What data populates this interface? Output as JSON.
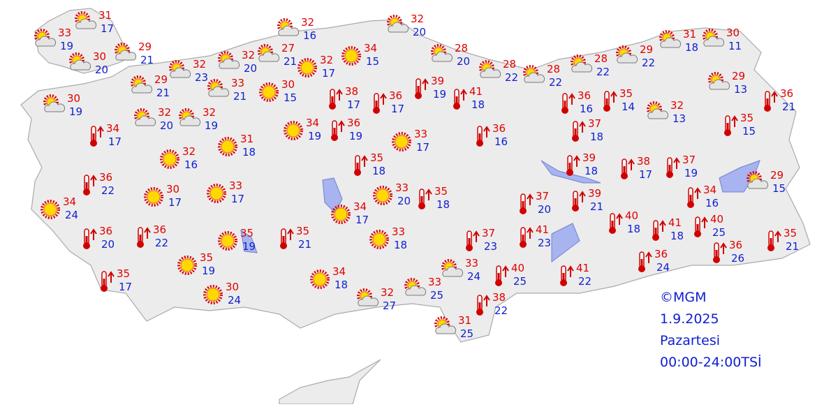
{
  "stations": [
    {
      "icon": "partly",
      "max": 33,
      "min": 19
    },
    {
      "icon": "partly",
      "max": 31,
      "min": 17
    },
    {
      "icon": "partly",
      "max": 30,
      "min": 20
    },
    {
      "icon": "partly",
      "max": 29,
      "min": 21
    },
    {
      "icon": "partly",
      "max": 32,
      "min": 23
    },
    {
      "icon": "partly",
      "max": 32,
      "min": 20
    },
    {
      "icon": "partly",
      "max": 27,
      "min": 21
    },
    {
      "icon": "sun",
      "max": 32,
      "min": 17
    },
    {
      "icon": "sun",
      "max": 34,
      "min": 15
    },
    {
      "icon": "partly",
      "max": 32,
      "min": 16
    },
    {
      "icon": "partly",
      "max": 32,
      "min": 20
    },
    {
      "icon": "partly",
      "max": 28,
      "min": 20
    },
    {
      "icon": "partly",
      "max": 28,
      "min": 22
    },
    {
      "icon": "partly",
      "max": 28,
      "min": 22
    },
    {
      "icon": "partly",
      "max": 28,
      "min": 22
    },
    {
      "icon": "partly",
      "max": 29,
      "min": 22
    },
    {
      "icon": "partly",
      "max": 31,
      "min": 18
    },
    {
      "icon": "partly",
      "max": 30,
      "min": 11
    },
    {
      "icon": "partly",
      "max": 29,
      "min": 13
    },
    {
      "icon": "hot",
      "max": 36,
      "min": 21
    },
    {
      "icon": "partly",
      "max": 29,
      "min": 21
    },
    {
      "icon": "partly",
      "max": 33,
      "min": 21
    },
    {
      "icon": "sun",
      "max": 30,
      "min": 15
    },
    {
      "icon": "hot",
      "max": 38,
      "min": 17
    },
    {
      "icon": "hot",
      "max": 36,
      "min": 17
    },
    {
      "icon": "hot",
      "max": 39,
      "min": 19
    },
    {
      "icon": "hot",
      "max": 41,
      "min": 18
    },
    {
      "icon": "hot",
      "max": 36,
      "min": 16
    },
    {
      "icon": "hot",
      "max": 35,
      "min": 14
    },
    {
      "icon": "partly",
      "max": 32,
      "min": 13
    },
    {
      "icon": "hot",
      "max": 35,
      "min": 15
    },
    {
      "icon": "partly",
      "max": 30,
      "min": 19
    },
    {
      "icon": "partly",
      "max": 32,
      "min": 20
    },
    {
      "icon": "partly",
      "max": 32,
      "min": 19
    },
    {
      "icon": "hot",
      "max": 34,
      "min": 17
    },
    {
      "icon": "sun",
      "max": 34,
      "min": 19
    },
    {
      "icon": "hot",
      "max": 36,
      "min": 19
    },
    {
      "icon": "sun",
      "max": 33,
      "min": 17
    },
    {
      "icon": "hot",
      "max": 36,
      "min": 16
    },
    {
      "icon": "hot",
      "max": 37,
      "min": 18
    },
    {
      "icon": "sun",
      "max": 32,
      "min": 16
    },
    {
      "icon": "sun",
      "max": 31,
      "min": 18
    },
    {
      "icon": "hot",
      "max": 35,
      "min": 18
    },
    {
      "icon": "hot",
      "max": 39,
      "min": 18
    },
    {
      "icon": "hot",
      "max": 38,
      "min": 17
    },
    {
      "icon": "hot",
      "max": 37,
      "min": 19
    },
    {
      "icon": "hot",
      "max": 36,
      "min": 22
    },
    {
      "icon": "sun",
      "max": 30,
      "min": 17
    },
    {
      "icon": "sun",
      "max": 33,
      "min": 17
    },
    {
      "icon": "sun",
      "max": 33,
      "min": 20
    },
    {
      "icon": "hot",
      "max": 35,
      "min": 18
    },
    {
      "icon": "hot",
      "max": 37,
      "min": 20
    },
    {
      "icon": "hot",
      "max": 39,
      "min": 21
    },
    {
      "icon": "hot",
      "max": 34,
      "min": 16
    },
    {
      "icon": "partly",
      "max": 29,
      "min": 15
    },
    {
      "icon": "sun",
      "max": 34,
      "min": 24
    },
    {
      "icon": "sun",
      "max": 34,
      "min": 17
    },
    {
      "icon": "hot",
      "max": 36,
      "min": 20
    },
    {
      "icon": "hot",
      "max": 36,
      "min": 22
    },
    {
      "icon": "sun",
      "max": 35,
      "min": 19
    },
    {
      "icon": "hot",
      "max": 35,
      "min": 21
    },
    {
      "icon": "sun",
      "max": 33,
      "min": 18
    },
    {
      "icon": "hot",
      "max": 37,
      "min": 23
    },
    {
      "icon": "hot",
      "max": 41,
      "min": 23
    },
    {
      "icon": "hot",
      "max": 40,
      "min": 18
    },
    {
      "icon": "hot",
      "max": 41,
      "min": 18
    },
    {
      "icon": "hot",
      "max": 40,
      "min": 25
    },
    {
      "icon": "hot",
      "max": 36,
      "min": 26
    },
    {
      "icon": "hot",
      "max": 35,
      "min": 21
    },
    {
      "icon": "hot",
      "max": 36,
      "min": 24
    },
    {
      "icon": "sun",
      "max": 35,
      "min": 19
    },
    {
      "icon": "partly",
      "max": 33,
      "min": 24
    },
    {
      "icon": "hot",
      "max": 40,
      "min": 25
    },
    {
      "icon": "hot",
      "max": 41,
      "min": 22
    },
    {
      "icon": "hot",
      "max": 35,
      "min": 17
    },
    {
      "icon": "sun",
      "max": 34,
      "min": 18
    },
    {
      "icon": "sun",
      "max": 30,
      "min": 24
    },
    {
      "icon": "partly",
      "max": 33,
      "min": 25
    },
    {
      "icon": "partly",
      "max": 32,
      "min": 27
    },
    {
      "icon": "hot",
      "max": 38,
      "min": 22
    },
    {
      "icon": "partly",
      "max": 31,
      "min": 25
    }
  ],
  "credit": {
    "source": "©MGM",
    "date": "1.9.2025",
    "day": "Pazartesi",
    "period": "00:00-24:00TSİ"
  }
}
